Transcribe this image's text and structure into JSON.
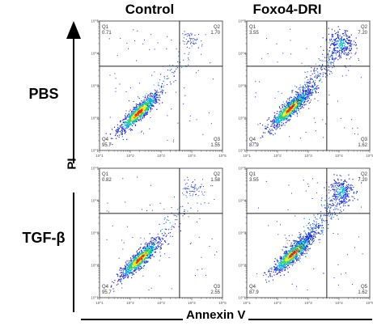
{
  "columns": [
    "Control",
    "Foxo4-DRI"
  ],
  "rows": [
    "PBS",
    "TGF-β"
  ],
  "x_axis_label": "Annexin V",
  "y_axis_label": "PI",
  "chart_data": {
    "type": "scatter",
    "subtype": "flow-cytometry density plots (2x2 grid)",
    "xlabel": "Annexin V",
    "ylabel": "PI",
    "x_scale": "log",
    "y_scale": "log",
    "xlim": [
      10,
      100000
    ],
    "ylim": [
      10,
      100000
    ],
    "tick_labels": [
      "10^1",
      "10^2",
      "10^3",
      "10^4",
      "10^5"
    ],
    "gate": {
      "x": 4000,
      "y": 4000
    },
    "density_colors": [
      "#1a2bd6",
      "#00b4e6",
      "#2ed15a",
      "#f4e40a",
      "#ff2a00"
    ],
    "panels": [
      {
        "row": "PBS",
        "column": "Control",
        "quadrants": {
          "Q1": "0.71",
          "Q2": "1.70",
          "Q3": "1.55",
          "Q4": "95.7"
        },
        "population": {
          "cx": 180,
          "cy": 150
        },
        "apoptotic_cluster": false
      },
      {
        "row": "PBS",
        "column": "Foxo4-DRI",
        "quadrants": {
          "Q1": "3.55",
          "Q2": "7.20",
          "Q3": "1.62",
          "Q4": "87.9"
        },
        "population": {
          "cx": 250,
          "cy": 200
        },
        "apoptotic_cluster": true
      },
      {
        "row": "TGF-β",
        "column": "Control",
        "quadrants": {
          "Q1": "0.82",
          "Q2": "1.58",
          "Q3": "2.55",
          "Q4": "95.7"
        },
        "population": {
          "cx": 200,
          "cy": 160
        },
        "apoptotic_cluster": false
      },
      {
        "row": "TGF-β",
        "column": "Foxo4-DRI",
        "quadrants": {
          "Q1": "3.55",
          "Q2": "7.20",
          "Q3": "1.62",
          "Q4": "87.9"
        },
        "population": {
          "cx": 300,
          "cy": 230
        },
        "apoptotic_cluster": true
      }
    ]
  }
}
